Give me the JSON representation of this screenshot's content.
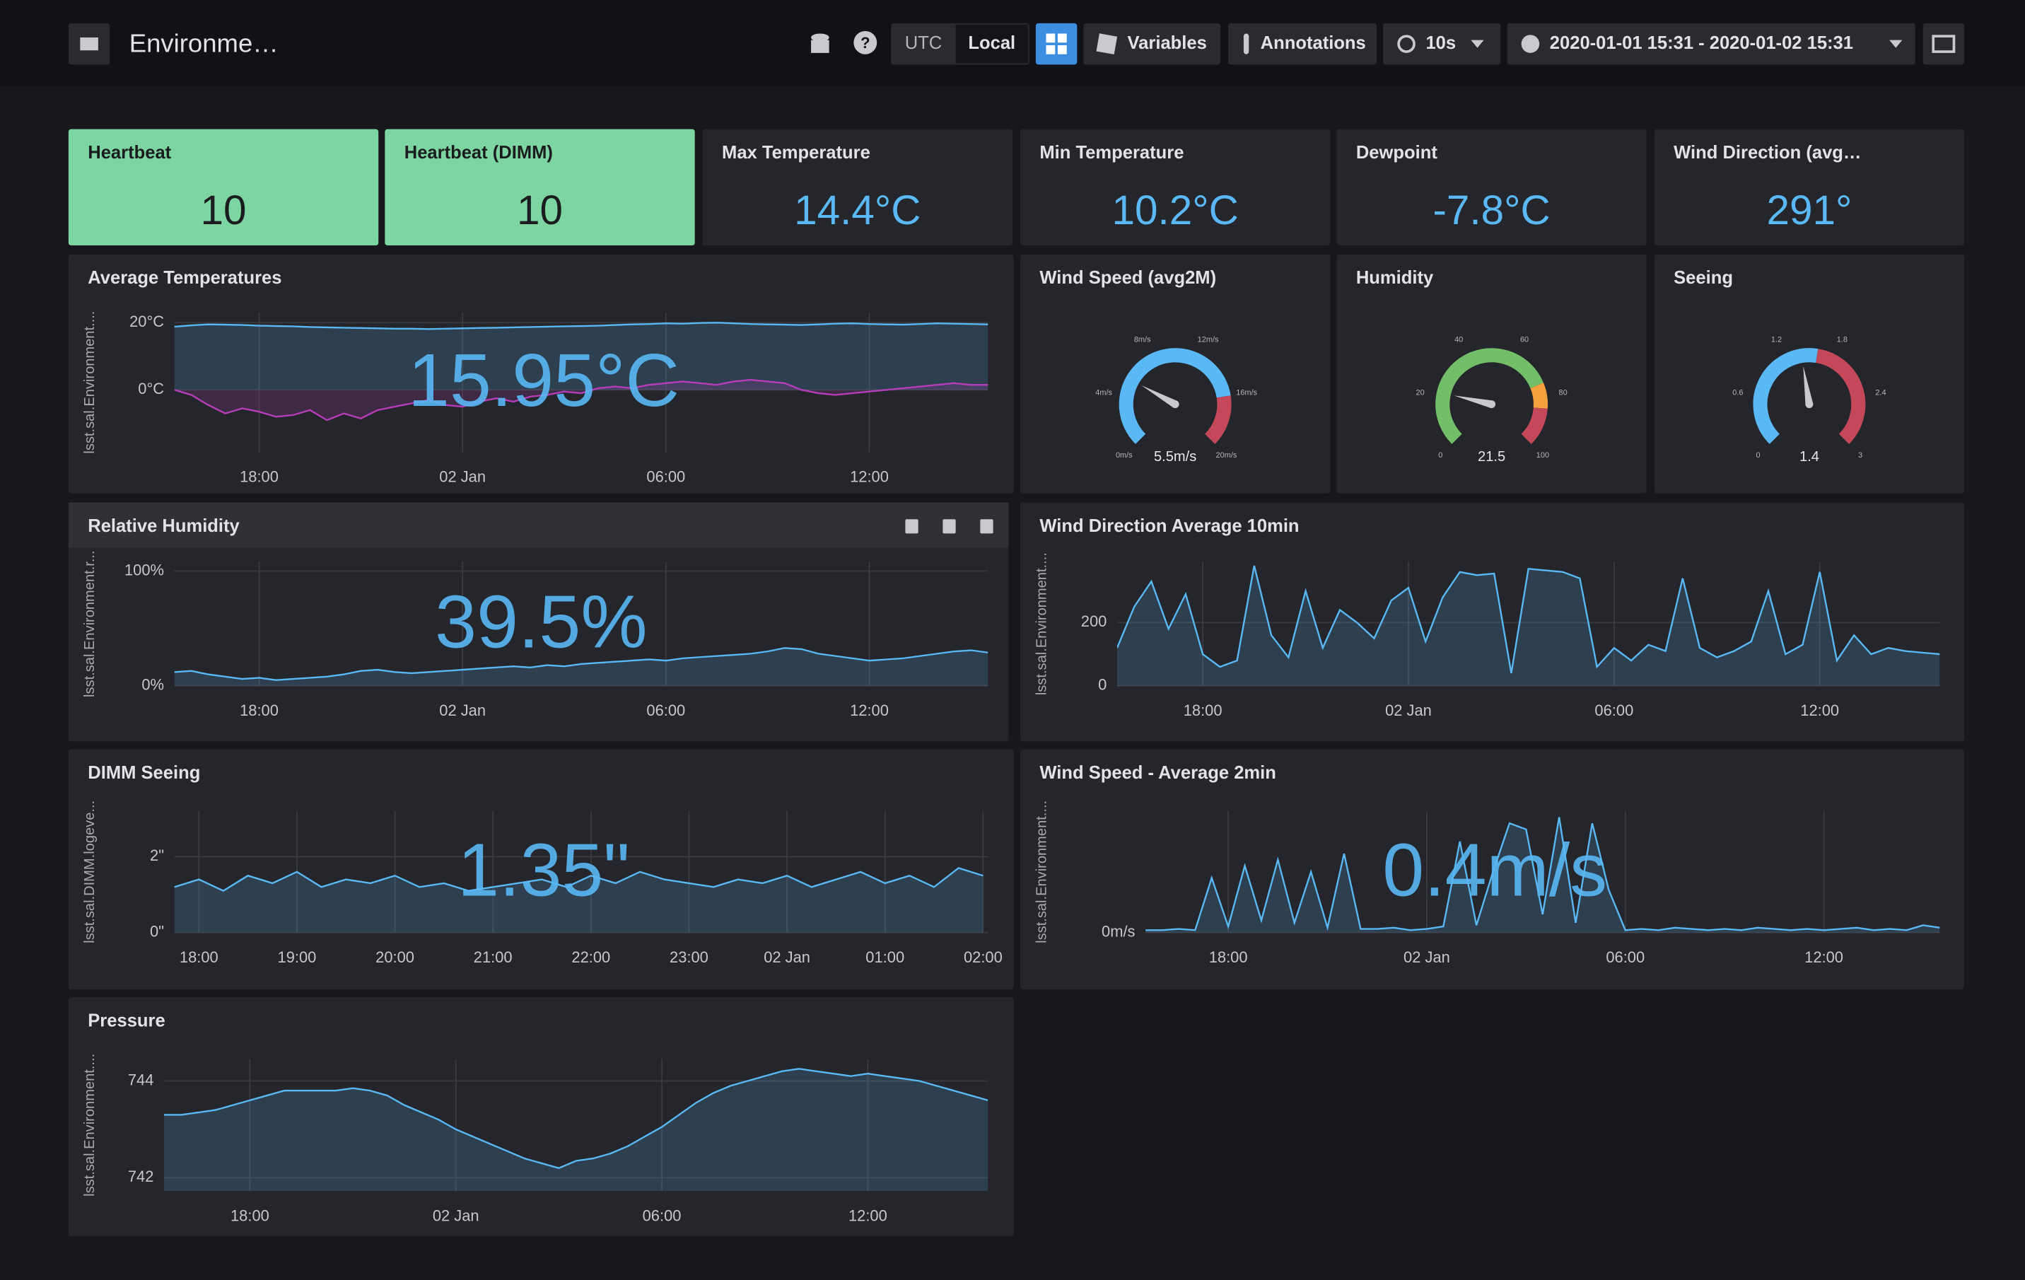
{
  "header": {
    "title": "Environme…",
    "timezones": [
      "UTC",
      "Local"
    ],
    "buttons": [
      "Variables",
      "Annotations"
    ],
    "refresh": "10s",
    "time_range": "2020-01-01 15:31 - 2020-01-02 15:31"
  },
  "stats": [
    {
      "title": "Heartbeat",
      "value": "10",
      "background": "#7dd6a2"
    },
    {
      "title": "Heartbeat (DIMM)",
      "value": "10",
      "background": "#7dd6a2"
    },
    {
      "title": "Max Temperature",
      "value": "14.4°C"
    },
    {
      "title": "Min Temperature",
      "value": "10.2°C"
    },
    {
      "title": "Dewpoint",
      "value": "-7.8°C"
    },
    {
      "title": "Wind Direction (avg…",
      "value": "291°"
    }
  ],
  "gauges": [
    {
      "title": "Wind Speed (avg2M)",
      "value": 5.5,
      "value_label": "5.5m/s",
      "range": [
        0,
        20
      ],
      "ticks": [
        {
          "value": 0,
          "label": "0m/s"
        },
        {
          "value": 4,
          "label": "4m/s"
        },
        {
          "value": 8,
          "label": "8m/s"
        },
        {
          "value": 12,
          "label": "12m/s"
        },
        {
          "value": 16,
          "label": "16m/s"
        },
        {
          "value": 20,
          "label": "20m/s"
        }
      ],
      "bands": [
        {
          "to": 16,
          "color": "#5ab8f5"
        },
        {
          "to": 20,
          "color": "#c4485a"
        }
      ]
    },
    {
      "title": "Humidity",
      "value": 21.5,
      "range": [
        0,
        100
      ],
      "ticks": [
        0,
        20,
        40,
        60,
        80,
        100
      ],
      "bands": [
        {
          "to": 75,
          "color": "#73bf69"
        },
        {
          "to": 85,
          "color": "#f2a13d"
        },
        {
          "to": 100,
          "color": "#c4485a"
        }
      ]
    },
    {
      "title": "Seeing",
      "value": 1.4,
      "range": [
        0,
        3
      ],
      "ticks": [
        0,
        0.6,
        1.2,
        1.8,
        2.4,
        3
      ],
      "bands": [
        {
          "to": 1.6,
          "color": "#5ab8f5"
        },
        {
          "to": 3,
          "color": "#c4485a"
        }
      ]
    }
  ],
  "graphs": [
    {
      "title": "Average Temperatures",
      "ylabel": "lsst.sal.Environment....",
      "big_value": "15.95°C",
      "xlim": [
        15.5,
        39.5
      ],
      "ylim": [
        -18.5,
        23
      ],
      "xticks": [
        {
          "value": 18,
          "label": "18:00"
        },
        {
          "value": 24,
          "label": "02 Jan"
        },
        {
          "value": 30,
          "label": "06:00"
        },
        {
          "value": 36,
          "label": "12:00"
        }
      ],
      "yticks": [
        {
          "value": 0,
          "label": "0°C"
        },
        {
          "value": 20,
          "label": "20°C"
        }
      ],
      "x": [
        15.5,
        16,
        16.5,
        17,
        17.5,
        18,
        18.5,
        19,
        19.5,
        20,
        20.5,
        21,
        21.5,
        22,
        22.5,
        23,
        23.5,
        24,
        24.5,
        25,
        25.5,
        26,
        26.5,
        27,
        27.5,
        28,
        28.5,
        29,
        29.5,
        30,
        30.5,
        31,
        31.5,
        32,
        32.5,
        33,
        33.5,
        34,
        34.5,
        35,
        35.5,
        36,
        36.5,
        37,
        37.5,
        38,
        38.5,
        39,
        39.5
      ],
      "series": [
        {
          "color": "#5ab8f5",
          "values": [
            18.8,
            19.2,
            19.5,
            19.4,
            19.3,
            19.1,
            19.0,
            18.9,
            18.7,
            18.6,
            18.5,
            18.4,
            18.3,
            18.2,
            18.2,
            18.1,
            18.2,
            18.3,
            18.4,
            18.5,
            18.6,
            18.7,
            18.8,
            18.9,
            19.0,
            19.1,
            19.3,
            19.5,
            19.6,
            19.8,
            19.7,
            19.9,
            20.0,
            19.8,
            19.6,
            19.5,
            19.4,
            19.3,
            19.5,
            19.7,
            19.8,
            19.6,
            19.5,
            19.4,
            19.6,
            19.8,
            19.7,
            19.6,
            19.5
          ]
        },
        {
          "color": "#b63dba",
          "values": [
            0.0,
            -1.5,
            -4.5,
            -7.0,
            -5.5,
            -6.5,
            -8.0,
            -7.5,
            -6.0,
            -9.0,
            -7.0,
            -8.5,
            -6.0,
            -5.0,
            -4.0,
            -3.0,
            -4.5,
            -5.0,
            -3.5,
            -2.5,
            -3.5,
            -2.0,
            -1.5,
            -0.5,
            -1.0,
            0.5,
            1.0,
            0.5,
            1.5,
            2.0,
            2.5,
            2.0,
            1.5,
            2.5,
            3.0,
            2.5,
            2.0,
            0.0,
            -1.0,
            -1.5,
            -1.0,
            -0.5,
            0.0,
            0.5,
            1.0,
            1.5,
            2.0,
            1.5,
            1.5
          ]
        }
      ]
    },
    {
      "title": "Relative Humidity",
      "ylabel": "lsst.sal.Environment.r...",
      "big_value": "39.5%",
      "xlim": [
        15.5,
        39.5
      ],
      "ylim": [
        0,
        108
      ],
      "xticks": [
        {
          "value": 18,
          "label": "18:00"
        },
        {
          "value": 24,
          "label": "02 Jan"
        },
        {
          "value": 30,
          "label": "06:00"
        },
        {
          "value": 36,
          "label": "12:00"
        }
      ],
      "yticks": [
        {
          "value": 0,
          "label": "0%"
        },
        {
          "value": 100,
          "label": "100%"
        }
      ],
      "x": [
        15.5,
        16,
        16.5,
        17,
        17.5,
        18,
        18.5,
        19,
        19.5,
        20,
        20.5,
        21,
        21.5,
        22,
        22.5,
        23,
        23.5,
        24,
        24.5,
        25,
        25.5,
        26,
        26.5,
        27,
        27.5,
        28,
        28.5,
        29,
        29.5,
        30,
        30.5,
        31,
        31.5,
        32,
        32.5,
        33,
        33.5,
        34,
        34.5,
        35,
        35.5,
        36,
        36.5,
        37,
        37.5,
        38,
        38.5,
        39,
        39.5
      ],
      "series": [
        {
          "color": "#5ab8f5",
          "values": [
            12,
            13,
            10,
            8,
            6,
            7,
            5,
            6,
            7,
            8,
            10,
            13,
            14,
            12,
            11,
            12,
            13,
            14,
            15,
            16,
            17,
            16,
            18,
            17,
            19,
            20,
            21,
            22,
            23,
            22,
            24,
            25,
            26,
            27,
            28,
            30,
            33,
            32,
            28,
            26,
            24,
            22,
            23,
            24,
            26,
            28,
            30,
            31,
            29
          ]
        }
      ]
    },
    {
      "title": "Wind Direction Average 10min",
      "ylabel": "lsst.sal.Environment....",
      "xlim": [
        15.5,
        39.5
      ],
      "ylim": [
        0,
        392
      ],
      "xticks": [
        {
          "value": 18,
          "label": "18:00"
        },
        {
          "value": 24,
          "label": "02 Jan"
        },
        {
          "value": 30,
          "label": "06:00"
        },
        {
          "value": 36,
          "label": "12:00"
        }
      ],
      "yticks": [
        0,
        200
      ],
      "x": [
        15.5,
        16,
        16.5,
        17,
        17.5,
        18,
        18.5,
        19,
        19.5,
        20,
        20.5,
        21,
        21.5,
        22,
        22.5,
        23,
        23.5,
        24,
        24.5,
        25,
        25.5,
        26,
        26.5,
        27,
        27.5,
        28,
        28.5,
        29,
        29.5,
        30,
        30.5,
        31,
        31.5,
        32,
        32.5,
        33,
        33.5,
        34,
        34.5,
        35,
        35.5,
        36,
        36.5,
        37,
        37.5,
        38,
        38.5,
        39,
        39.5
      ],
      "series": [
        {
          "color": "#5ab8f5",
          "values": [
            120,
            250,
            330,
            180,
            290,
            100,
            60,
            80,
            380,
            160,
            90,
            300,
            120,
            240,
            200,
            150,
            270,
            310,
            140,
            280,
            360,
            350,
            355,
            40,
            370,
            365,
            360,
            340,
            60,
            120,
            80,
            130,
            110,
            340,
            120,
            90,
            110,
            140,
            300,
            100,
            130,
            360,
            80,
            160,
            100,
            120,
            110,
            105,
            100
          ]
        }
      ]
    },
    {
      "title": "DIMM Seeing",
      "ylabel": "lsst.sal.DIMM.logeve...",
      "big_value": "1.35\"",
      "xlim": [
        17.75,
        26.05
      ],
      "ylim": [
        0,
        3.2
      ],
      "xticks": [
        {
          "value": 18,
          "label": "18:00"
        },
        {
          "value": 19,
          "label": "19:00"
        },
        {
          "value": 20,
          "label": "20:00"
        },
        {
          "value": 21,
          "label": "21:00"
        },
        {
          "value": 22,
          "label": "22:00"
        },
        {
          "value": 23,
          "label": "23:00"
        },
        {
          "value": 24,
          "label": "02 Jan"
        },
        {
          "value": 25,
          "label": "01:00"
        },
        {
          "value": 26,
          "label": "02:00"
        }
      ],
      "yticks": [
        {
          "value": 0,
          "label": "0\""
        },
        {
          "value": 2,
          "label": "2\""
        }
      ],
      "x": [
        17.75,
        18,
        18.25,
        18.5,
        18.75,
        19,
        19.25,
        19.5,
        19.75,
        20,
        20.25,
        20.5,
        20.75,
        21,
        21.25,
        21.5,
        21.75,
        22,
        22.25,
        22.5,
        22.75,
        23,
        23.25,
        23.5,
        23.75,
        24,
        24.25,
        24.5,
        24.75,
        25,
        25.25,
        25.5,
        25.75,
        26
      ],
      "series": [
        {
          "color": "#5ab8f5",
          "values": [
            1.2,
            1.4,
            1.1,
            1.5,
            1.3,
            1.6,
            1.2,
            1.4,
            1.3,
            1.5,
            1.2,
            1.3,
            1.1,
            1.2,
            1.3,
            1.4,
            1.2,
            1.5,
            1.3,
            1.6,
            1.4,
            1.3,
            1.2,
            1.4,
            1.3,
            1.5,
            1.2,
            1.4,
            1.6,
            1.3,
            1.5,
            1.2,
            1.7,
            1.5
          ]
        }
      ]
    },
    {
      "title": "Wind Speed - Average 2min",
      "ylabel": "lsst.sal.Environment....",
      "big_value": "0.4m/s",
      "xlim": [
        15.5,
        39.5
      ],
      "ylim": [
        0,
        10
      ],
      "xticks": [
        {
          "value": 18,
          "label": "18:00"
        },
        {
          "value": 24,
          "label": "02 Jan"
        },
        {
          "value": 30,
          "label": "06:00"
        },
        {
          "value": 36,
          "label": "12:00"
        }
      ],
      "yticks": [
        {
          "value": 0,
          "label": "0m/s"
        }
      ],
      "x": [
        15.5,
        16,
        16.5,
        17,
        17.5,
        18,
        18.5,
        19,
        19.5,
        20,
        20.5,
        21,
        21.5,
        22,
        22.5,
        23,
        23.5,
        24,
        24.5,
        25,
        25.5,
        26,
        26.5,
        27,
        27.5,
        28,
        28.5,
        29,
        29.5,
        30,
        30.5,
        31,
        31.5,
        32,
        32.5,
        33,
        33.5,
        34,
        34.5,
        35,
        35.5,
        36,
        36.5,
        37,
        37.5,
        38,
        38.5,
        39,
        39.5
      ],
      "series": [
        {
          "color": "#5ab8f5",
          "values": [
            0.2,
            0.2,
            0.3,
            0.2,
            4.5,
            0.5,
            5.5,
            1.0,
            6.0,
            0.8,
            5.0,
            0.4,
            6.5,
            0.3,
            0.3,
            0.4,
            0.2,
            0.3,
            0.5,
            7.5,
            0.6,
            5.0,
            9.0,
            8.5,
            1.5,
            9.5,
            0.8,
            9.0,
            3.5,
            0.2,
            0.3,
            0.2,
            0.4,
            0.3,
            0.2,
            0.3,
            0.2,
            0.4,
            0.3,
            0.2,
            0.3,
            0.2,
            0.3,
            0.4,
            0.2,
            0.3,
            0.2,
            0.6,
            0.4
          ]
        }
      ]
    },
    {
      "title": "Pressure",
      "ylabel": "lsst.sal.Environment....",
      "xlim": [
        15.5,
        39.5
      ],
      "ylim": [
        741.73,
        744.45
      ],
      "xticks": [
        {
          "value": 18,
          "label": "18:00"
        },
        {
          "value": 24,
          "label": "02 Jan"
        },
        {
          "value": 30,
          "label": "06:00"
        },
        {
          "value": 36,
          "label": "12:00"
        }
      ],
      "yticks": [
        742,
        744
      ],
      "x": [
        15.5,
        16,
        16.5,
        17,
        17.5,
        18,
        18.5,
        19,
        19.5,
        20,
        20.5,
        21,
        21.5,
        22,
        22.5,
        23,
        23.5,
        24,
        24.5,
        25,
        25.5,
        26,
        26.5,
        27,
        27.5,
        28,
        28.5,
        29,
        29.5,
        30,
        30.5,
        31,
        31.5,
        32,
        32.5,
        33,
        33.5,
        34,
        34.5,
        35,
        35.5,
        36,
        36.5,
        37,
        37.5,
        38,
        38.5,
        39,
        39.5
      ],
      "series": [
        {
          "color": "#5ab8f5",
          "values": [
            743.3,
            743.3,
            743.35,
            743.4,
            743.5,
            743.6,
            743.7,
            743.8,
            743.8,
            743.8,
            743.8,
            743.85,
            743.8,
            743.7,
            743.5,
            743.35,
            743.2,
            743.0,
            742.85,
            742.7,
            742.55,
            742.4,
            742.3,
            742.2,
            742.35,
            742.4,
            742.5,
            742.65,
            742.85,
            743.05,
            743.3,
            743.55,
            743.75,
            743.9,
            744.0,
            744.1,
            744.2,
            744.25,
            744.2,
            744.15,
            744.1,
            744.15,
            744.1,
            744.05,
            744.0,
            743.9,
            743.8,
            743.7,
            743.6
          ]
        }
      ]
    }
  ]
}
